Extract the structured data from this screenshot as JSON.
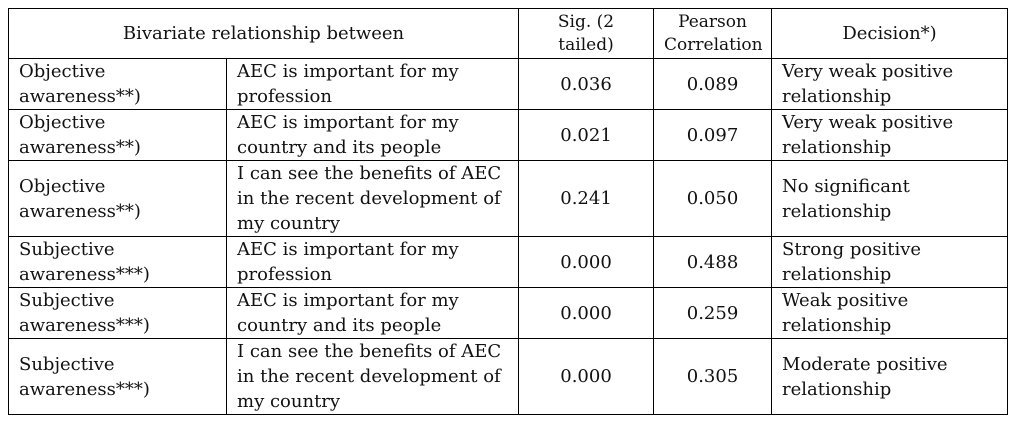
{
  "header": {
    "relationship": "Bivariate relationship between",
    "sig": "Sig. (2 tailed)",
    "pearson": "Pearson Correlation",
    "decision": "Decision*)"
  },
  "rows": [
    {
      "awareness": "Objective awareness**)",
      "statement": "AEC is important for my profession",
      "sig": "0.036",
      "pearson": "0.089",
      "decision": "Very weak positive relationship"
    },
    {
      "awareness": "Objective awareness**)",
      "statement": "AEC is important for my country and its people",
      "sig": "0.021",
      "pearson": "0.097",
      "decision": "Very weak positive relationship"
    },
    {
      "awareness": "Objective awareness**)",
      "statement": "I can see the benefits of AEC in the recent development of my country",
      "sig": "0.241",
      "pearson": "0.050",
      "decision": "No significant relationship"
    },
    {
      "awareness": "Subjective awareness***)",
      "statement": "AEC is important for my profession",
      "sig": "0.000",
      "pearson": "0.488",
      "decision": "Strong positive relationship"
    },
    {
      "awareness": "Subjective awareness***)",
      "statement": "AEC is important for my country and its people",
      "sig": "0.000",
      "pearson": "0.259",
      "decision": "Weak positive relationship"
    },
    {
      "awareness": "Subjective awareness***)",
      "statement": "I can see the benefits of AEC in the recent development of my country",
      "sig": "0.000",
      "pearson": "0.305",
      "decision": "Moderate positive relationship"
    }
  ]
}
